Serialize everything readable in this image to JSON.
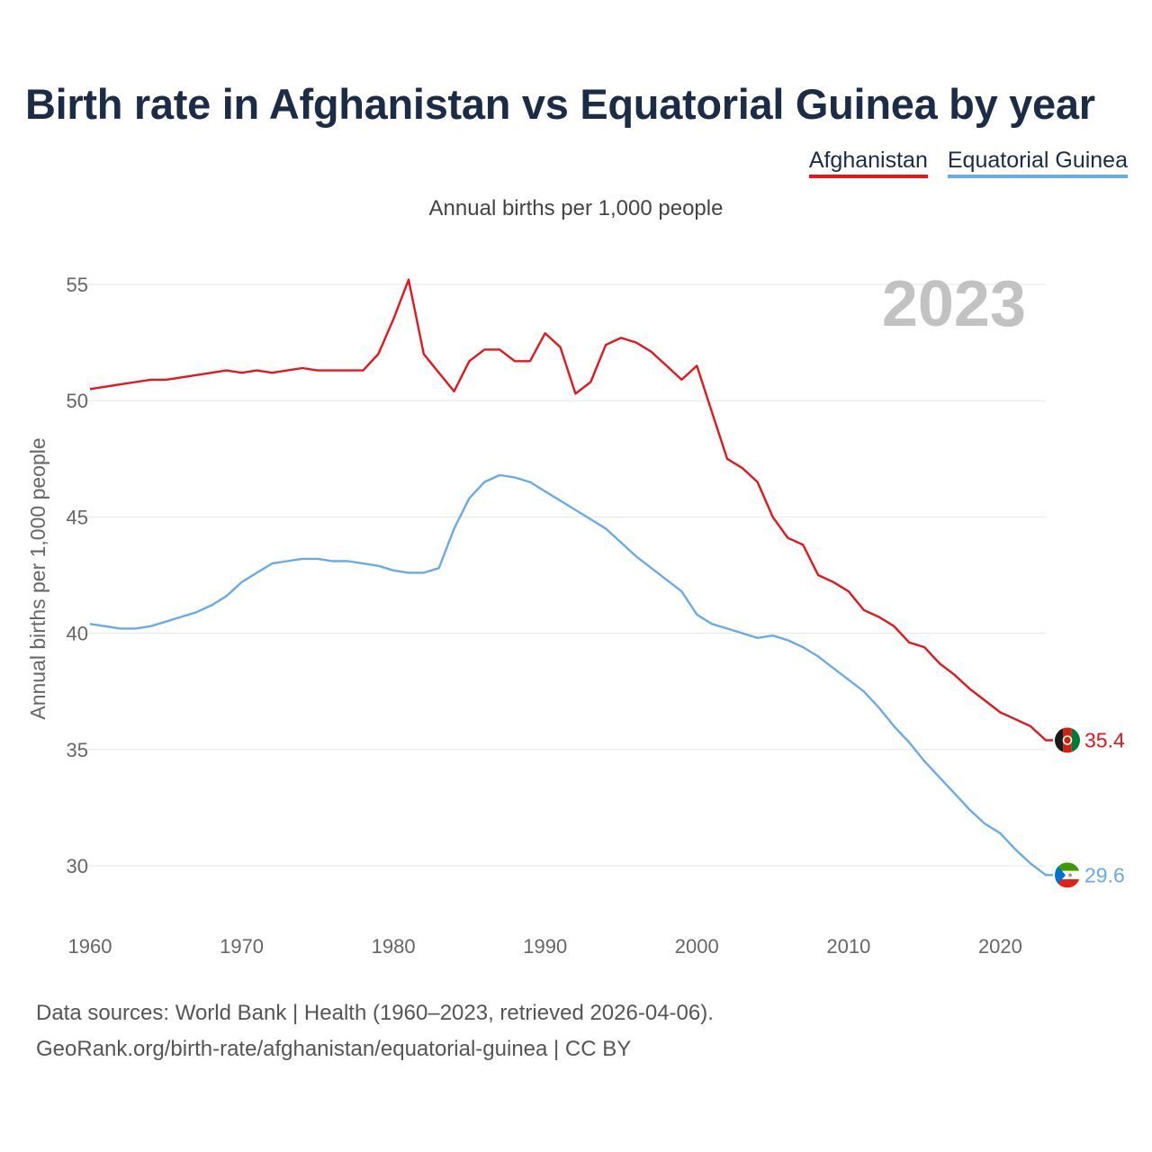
{
  "title": "Birth rate in Afghanistan vs Equatorial Guinea by year",
  "subtitle": "Annual births per 1,000 people",
  "footer": {
    "line1": "Data sources: World Bank | Health (1960–2023, retrieved 2026-04-06).",
    "line2": "GeoRank.org/birth-rate/afghanistan/equatorial-guinea | CC BY"
  },
  "chart_data": {
    "type": "line",
    "title": "Birth rate in Afghanistan vs Equatorial Guinea by year",
    "xlabel": "",
    "ylabel": "Annual births per 1,000 people",
    "xlim": [
      1960,
      2023
    ],
    "ylim": [
      28,
      56
    ],
    "x_ticks": [
      1960,
      1970,
      1980,
      1990,
      2000,
      2010,
      2020
    ],
    "y_ticks": [
      30,
      35,
      40,
      45,
      50,
      55
    ],
    "grid": true,
    "legend_position": "top-right",
    "year_label": "2023",
    "x": [
      1960,
      1961,
      1962,
      1963,
      1964,
      1965,
      1966,
      1967,
      1968,
      1969,
      1970,
      1971,
      1972,
      1973,
      1974,
      1975,
      1976,
      1977,
      1978,
      1979,
      1980,
      1981,
      1982,
      1983,
      1984,
      1985,
      1986,
      1987,
      1988,
      1989,
      1990,
      1991,
      1992,
      1993,
      1994,
      1995,
      1996,
      1997,
      1998,
      1999,
      2000,
      2001,
      2002,
      2003,
      2004,
      2005,
      2006,
      2007,
      2008,
      2009,
      2010,
      2011,
      2012,
      2013,
      2014,
      2015,
      2016,
      2017,
      2018,
      2019,
      2020,
      2021,
      2022,
      2023
    ],
    "series": [
      {
        "name": "Afghanistan",
        "color": "#e8141e",
        "end_label": "35.4",
        "values": [
          50.5,
          50.6,
          50.7,
          50.8,
          50.9,
          50.9,
          51.0,
          51.1,
          51.2,
          51.3,
          51.2,
          51.3,
          51.2,
          51.3,
          51.4,
          51.3,
          51.3,
          51.3,
          51.3,
          52.0,
          53.5,
          55.2,
          52.0,
          51.2,
          50.4,
          51.7,
          52.2,
          52.2,
          51.7,
          51.7,
          52.9,
          52.3,
          50.3,
          50.8,
          52.4,
          52.7,
          52.5,
          52.1,
          51.5,
          50.9,
          51.5,
          49.5,
          47.5,
          47.1,
          46.5,
          45.0,
          44.1,
          43.8,
          42.5,
          42.2,
          41.8,
          41.0,
          40.7,
          40.3,
          39.6,
          39.4,
          38.7,
          38.2,
          37.6,
          37.1,
          36.6,
          36.3,
          36.0,
          35.4
        ]
      },
      {
        "name": "Equatorial Guinea",
        "color": "#6aaae6",
        "end_label": "29.6",
        "values": [
          40.4,
          40.3,
          40.2,
          40.2,
          40.3,
          40.5,
          40.7,
          40.9,
          41.2,
          41.6,
          42.2,
          42.6,
          43.0,
          43.1,
          43.2,
          43.2,
          43.1,
          43.1,
          43.0,
          42.9,
          42.7,
          42.6,
          42.6,
          42.8,
          44.5,
          45.8,
          46.5,
          46.8,
          46.7,
          46.5,
          46.1,
          45.7,
          45.3,
          44.9,
          44.5,
          43.9,
          43.3,
          42.8,
          42.3,
          41.8,
          40.8,
          40.4,
          40.2,
          40.0,
          39.8,
          39.9,
          39.7,
          39.4,
          39.0,
          38.5,
          38.0,
          37.5,
          36.8,
          36.0,
          35.3,
          34.5,
          33.8,
          33.1,
          32.4,
          31.8,
          31.4,
          30.7,
          30.1,
          29.6
        ]
      }
    ]
  }
}
